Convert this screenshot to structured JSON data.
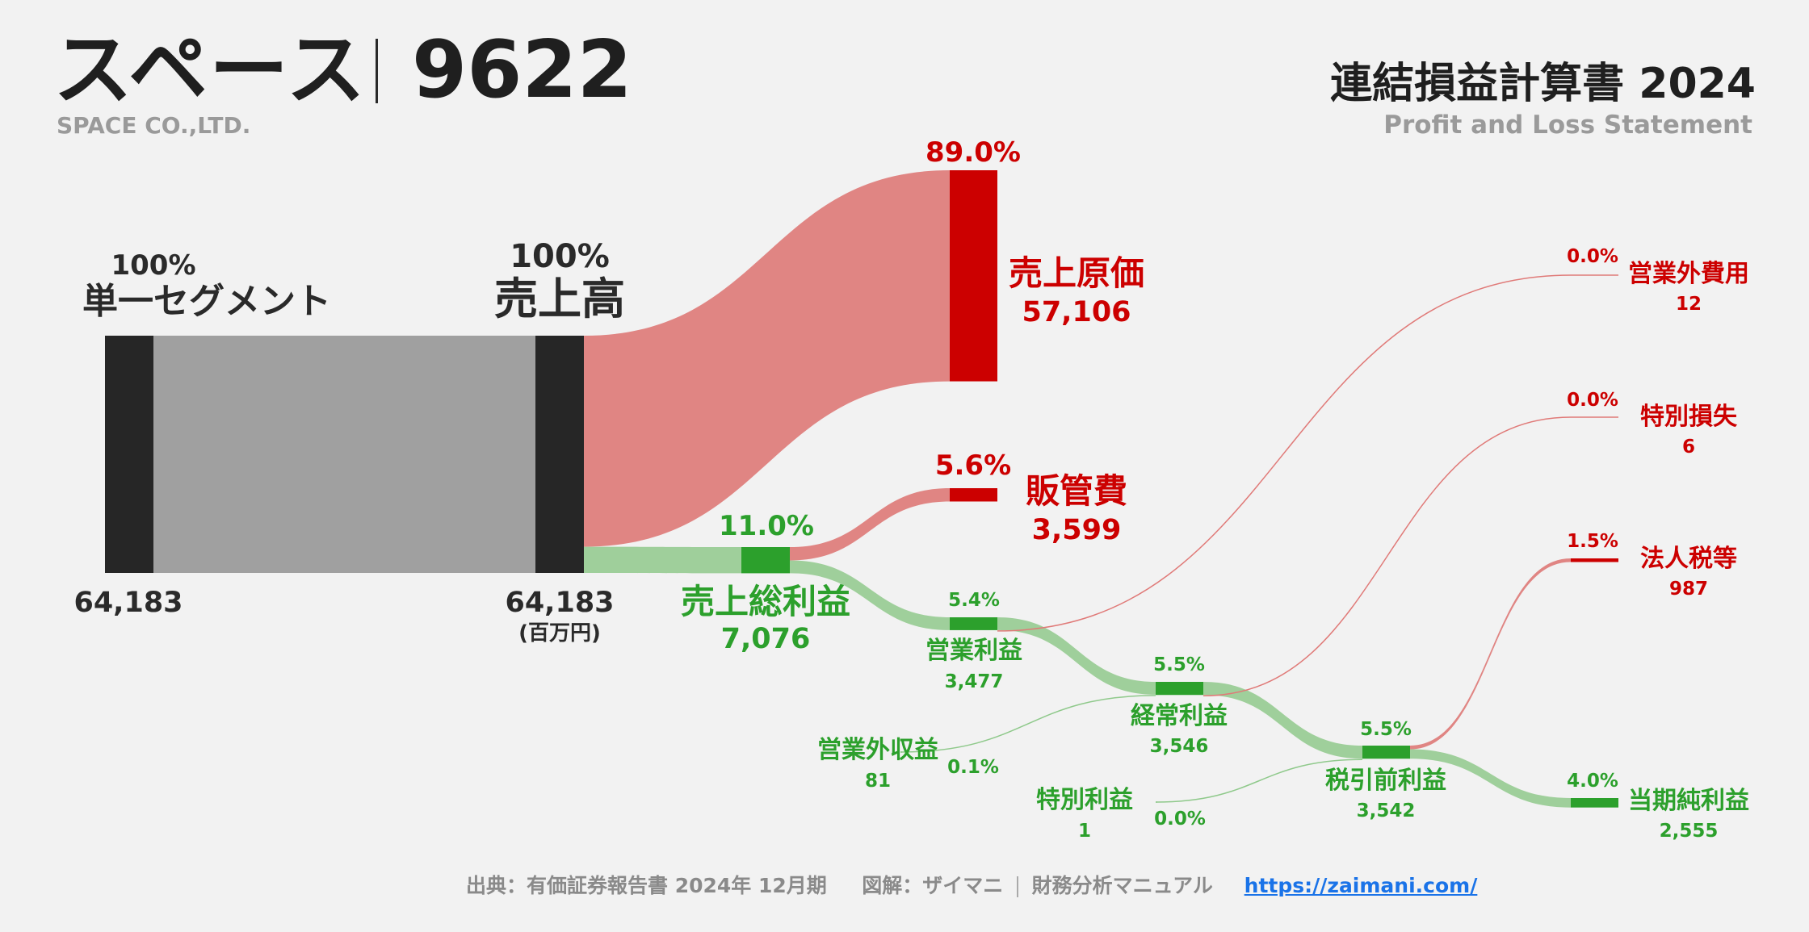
{
  "header": {
    "company_name": "スペース",
    "ticker": "9622",
    "company_en": "SPACE CO.,LTD.",
    "statement_title": "連結損益計算書 2024",
    "statement_en": "Profit and Loss Statement"
  },
  "footer": {
    "source": "出典：有価証券報告書 2024年 12月期",
    "credit": "図解：ザイマニ",
    "site": "財務分析マニュアル",
    "link": "https://zaimani.com/"
  },
  "colors": {
    "dark": "#262626",
    "grey_flow": "#a0a0a0",
    "red_node": "#cc0000",
    "red_flow": "#e08583",
    "green_node": "#2ca02c",
    "green_flow": "#9fcf9b",
    "background": "#f2f2f2"
  },
  "chart_data": {
    "type": "sankey",
    "unit": "(百万円)",
    "nodes": [
      {
        "id": "segment",
        "label": "単一セグメント",
        "value": 64183,
        "value_label": "64,183",
        "pct": "100%",
        "kind": "dark"
      },
      {
        "id": "revenue",
        "label": "売上高",
        "value": 64183,
        "value_label": "64,183",
        "pct": "100%",
        "kind": "dark"
      },
      {
        "id": "cogs",
        "label": "売上原価",
        "value": 57106,
        "value_label": "57,106",
        "pct": "89.0%",
        "kind": "red"
      },
      {
        "id": "gross_profit",
        "label": "売上総利益",
        "value": 7076,
        "value_label": "7,076",
        "pct": "11.0%",
        "kind": "green"
      },
      {
        "id": "sga",
        "label": "販管費",
        "value": 3599,
        "value_label": "3,599",
        "pct": "5.6%",
        "kind": "red"
      },
      {
        "id": "operating_profit",
        "label": "営業利益",
        "value": 3477,
        "value_label": "3,477",
        "pct": "5.4%",
        "kind": "green"
      },
      {
        "id": "non_op_income",
        "label": "営業外収益",
        "value": 81,
        "value_label": "81",
        "pct": "0.1%",
        "kind": "green"
      },
      {
        "id": "non_op_expense",
        "label": "営業外費用",
        "value": 12,
        "value_label": "12",
        "pct": "0.0%",
        "kind": "red"
      },
      {
        "id": "ordinary_profit",
        "label": "経常利益",
        "value": 3546,
        "value_label": "3,546",
        "pct": "5.5%",
        "kind": "green"
      },
      {
        "id": "extraordinary_income",
        "label": "特別利益",
        "value": 1,
        "value_label": "1",
        "pct": "0.0%",
        "kind": "green"
      },
      {
        "id": "extraordinary_loss",
        "label": "特別損失",
        "value": 6,
        "value_label": "6",
        "pct": "0.0%",
        "kind": "red"
      },
      {
        "id": "pretax_profit",
        "label": "税引前利益",
        "value": 3542,
        "value_label": "3,542",
        "pct": "5.5%",
        "kind": "green"
      },
      {
        "id": "income_tax",
        "label": "法人税等",
        "value": 987,
        "value_label": "987",
        "pct": "1.5%",
        "kind": "red"
      },
      {
        "id": "net_income",
        "label": "当期純利益",
        "value": 2555,
        "value_label": "2,555",
        "pct": "4.0%",
        "kind": "green"
      }
    ],
    "links": [
      {
        "source": "segment",
        "target": "revenue",
        "value": 64183
      },
      {
        "source": "revenue",
        "target": "cogs",
        "value": 57106
      },
      {
        "source": "revenue",
        "target": "gross_profit",
        "value": 7076
      },
      {
        "source": "gross_profit",
        "target": "sga",
        "value": 3599
      },
      {
        "source": "gross_profit",
        "target": "operating_profit",
        "value": 3477
      },
      {
        "source": "operating_profit",
        "target": "ordinary_profit",
        "value": 3477
      },
      {
        "source": "operating_profit",
        "target": "non_op_expense",
        "value": 12
      },
      {
        "source": "non_op_income",
        "target": "ordinary_profit",
        "value": 81
      },
      {
        "source": "ordinary_profit",
        "target": "pretax_profit",
        "value": 3546
      },
      {
        "source": "ordinary_profit",
        "target": "extraordinary_loss",
        "value": 6
      },
      {
        "source": "extraordinary_income",
        "target": "pretax_profit",
        "value": 1
      },
      {
        "source": "pretax_profit",
        "target": "income_tax",
        "value": 987
      },
      {
        "source": "pretax_profit",
        "target": "net_income",
        "value": 2555
      }
    ]
  }
}
